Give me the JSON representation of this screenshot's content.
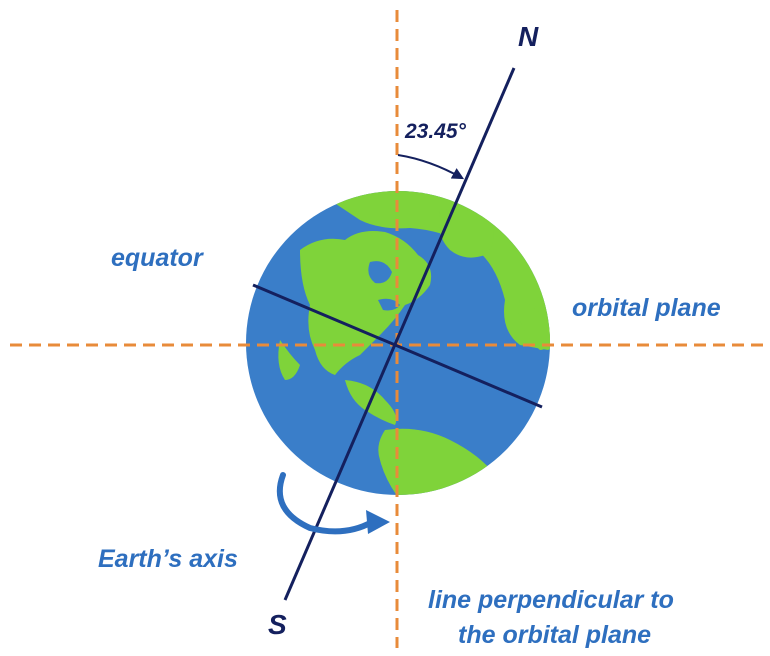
{
  "labels": {
    "north": "N",
    "south": "S",
    "angle": "23.45°",
    "equator": "equator",
    "orbital_plane": "orbital plane",
    "earths_axis": "Earth’s axis",
    "perpendicular_line_1": "line perpendicular to",
    "perpendicular_line_2": "the orbital plane"
  },
  "tilt_degrees": 23.45,
  "colors": {
    "ocean": "#3a7ec9",
    "land": "#7fd33a",
    "axis": "#14205e",
    "dashed_lines": "#e88b3a",
    "label_blue": "#2e6fbf",
    "label_navy": "#14205e"
  },
  "icons": {
    "globe": "earth-globe-icon",
    "rotation_arrow": "curved-rotation-arrow-icon",
    "angle_arrow": "angle-arc-arrow-icon"
  }
}
